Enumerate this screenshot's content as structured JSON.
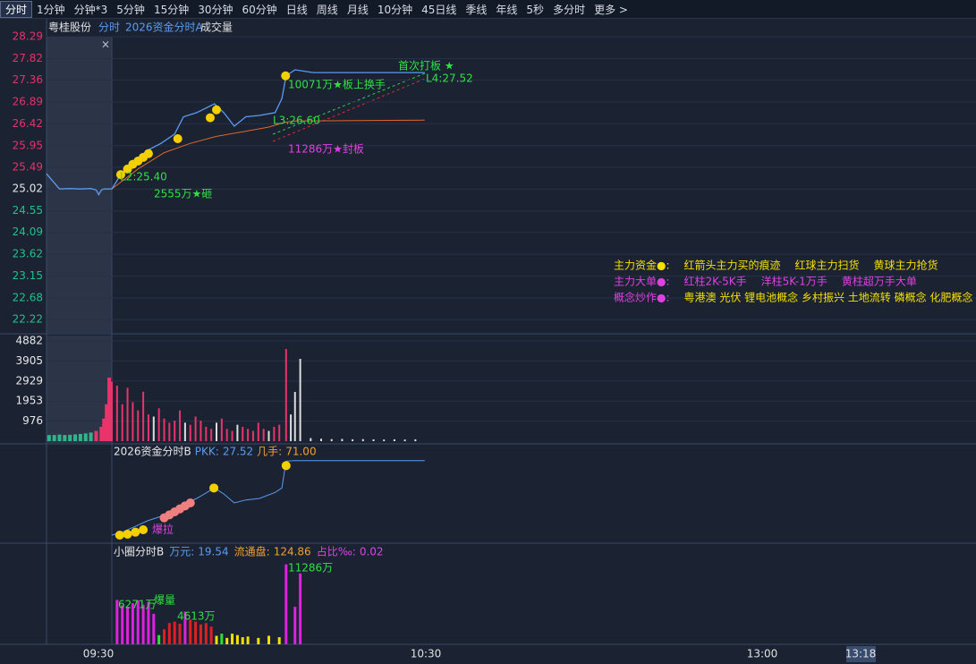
{
  "tabs": [
    "分时",
    "1分钟",
    "分钟*3",
    "5分钟",
    "15分钟",
    "30分钟",
    "60分钟",
    "日线",
    "周线",
    "月线",
    "10分钟",
    "45日线",
    "季线",
    "年线",
    "5秒",
    "多分时",
    "更多 >"
  ],
  "header": {
    "stock": "粤桂股份",
    "mode": "分时",
    "indicator": "2026资金分时A",
    "volume": "成交量",
    "close": "×"
  },
  "price_panel": {
    "ylim": [
      22.22,
      28.29
    ],
    "yticks": [
      28.29,
      27.82,
      27.36,
      26.89,
      26.42,
      25.95,
      25.49,
      25.02,
      24.55,
      24.09,
      23.62,
      23.15,
      22.68,
      22.22
    ],
    "prev_close": 25.02,
    "price": {
      "color": "#5b9bf0",
      "x": [
        -12.5,
        -10,
        -8,
        -6,
        -4,
        -3,
        -2.5,
        -2,
        -1.5,
        0,
        1.7,
        4.3,
        6.8,
        9.4,
        12,
        13.7,
        16.2,
        19.6,
        21.4,
        23.4,
        25.6,
        28.2,
        31.2,
        32.5,
        33.3,
        35,
        38.5,
        59.8
      ],
      "values": [
        25.35,
        25.02,
        25.03,
        25.02,
        25.03,
        25.0,
        24.9,
        25.0,
        25.02,
        25.02,
        25.33,
        25.62,
        25.85,
        26.0,
        26.2,
        26.57,
        26.66,
        26.85,
        26.66,
        26.37,
        26.57,
        26.6,
        26.66,
        26.96,
        27.45,
        27.58,
        27.52,
        27.52
      ]
    },
    "average": {
      "color": "#e0662a",
      "x": [
        0,
        5,
        10,
        15,
        20,
        25,
        30,
        33,
        35,
        59.8
      ],
      "values": [
        25.02,
        25.45,
        25.8,
        26.0,
        26.15,
        26.25,
        26.35,
        26.45,
        26.48,
        26.5
      ]
    },
    "dots": {
      "color": "#f5d000",
      "x": [
        1.7,
        3,
        4,
        5,
        6,
        7,
        12.6,
        18.8,
        20,
        33.2
      ],
      "values": [
        25.33,
        25.45,
        25.55,
        25.62,
        25.7,
        25.78,
        26.1,
        26.55,
        26.72,
        27.45
      ]
    },
    "annotations": [
      "首次打板 ★",
      "L4:27.52",
      "10071万★板上换手",
      "L3:26.60",
      "11286万★封板",
      "L2:25.40",
      "2555万★砸"
    ],
    "legend": [
      [
        "主力资金●:",
        "红箭头主力买的痕迹",
        "红球主力扫货",
        "黄球主力抢货"
      ],
      [
        "主力大单●:",
        "红柱2K-5K手",
        "洋柱5K-1万手",
        "黄柱超万手大单"
      ],
      [
        "概念炒作●:",
        "粤港澳 光伏 锂电池概念 乡村振兴 土地流转 磷概念 化肥概念"
      ]
    ]
  },
  "volume_panel": {
    "ylim": [
      0,
      4882
    ],
    "yticks": [
      4882,
      3905,
      2929,
      1953,
      976
    ],
    "x": [
      -12,
      -11,
      -10,
      -9,
      -8,
      -7,
      -6,
      -5,
      -4,
      -3,
      -2,
      -1.5,
      -1,
      -0.5,
      0,
      1,
      2,
      3,
      4,
      5,
      6,
      7,
      8,
      9,
      10,
      11,
      12,
      13,
      14,
      15,
      16,
      17,
      18,
      19,
      20,
      21,
      22,
      23,
      24,
      25,
      26,
      27,
      28,
      29,
      30,
      31,
      32,
      33.3,
      34.2,
      35,
      36,
      38,
      40,
      42,
      44,
      46,
      48,
      50,
      52,
      54,
      56,
      58
    ],
    "values": [
      300,
      300,
      320,
      300,
      310,
      330,
      350,
      380,
      420,
      500,
      700,
      1100,
      1800,
      3100,
      2900,
      2700,
      1800,
      2600,
      1900,
      1500,
      2400,
      1300,
      1200,
      1600,
      1100,
      900,
      1000,
      1500,
      900,
      800,
      1200,
      1000,
      700,
      600,
      900,
      1100,
      600,
      500,
      800,
      700,
      600,
      500,
      900,
      600,
      500,
      700,
      800,
      4490,
      1300,
      2400,
      4010,
      150,
      120,
      100,
      110,
      90,
      100,
      90,
      80,
      90,
      80,
      90
    ],
    "colors": [
      "#2fb58a",
      "#2fb58a",
      "#2fb58a",
      "#2fb58a",
      "#2fb58a",
      "#2fb58a",
      "#2fb58a",
      "#2fb58a",
      "#2fb58a",
      "#e8346a",
      "#e8346a",
      "#e8346a",
      "#e8346a",
      "#e8346a",
      "#e8346a",
      "#e8346a",
      "#e8346a",
      "#e8346a",
      "#e8346a",
      "#e8346a",
      "#e8346a",
      "#e8346a",
      "#dddddd",
      "#e8346a",
      "#e8346a",
      "#e8346a",
      "#e8346a",
      "#e8346a",
      "#dddddd",
      "#e8346a",
      "#e8346a",
      "#e8346a",
      "#e8346a",
      "#e8346a",
      "#dddddd",
      "#e8346a",
      "#e8346a",
      "#e8346a",
      "#dddddd",
      "#e8346a",
      "#e8346a",
      "#e8346a",
      "#e8346a",
      "#e8346a",
      "#dddddd",
      "#e8346a",
      "#e8346a",
      "#e8346a",
      "#dddddd",
      "#dddddd",
      "#dddddd",
      "#dddddd",
      "#dddddd",
      "#dddddd",
      "#dddddd",
      "#dddddd",
      "#dddddd",
      "#dddddd",
      "#dddddd",
      "#dddddd",
      "#dddddd",
      "#dddddd"
    ]
  },
  "panel2": {
    "title": "2026资金分时B",
    "pkk_label": "PKK:",
    "pkk": "27.52",
    "hands_label": "几手:",
    "hands": "71.00",
    "ylim": [
      24.9,
      27.6
    ],
    "line": {
      "color": "#5b9bf0",
      "x": [
        0,
        1.7,
        4.3,
        6.8,
        9.4,
        12,
        13.7,
        16.2,
        19.6,
        21.4,
        23.4,
        25.6,
        28.2,
        31.2,
        32.5,
        33.3,
        35,
        59.8
      ],
      "values": [
        25.02,
        25.1,
        25.3,
        25.5,
        25.65,
        25.8,
        26.05,
        26.25,
        26.6,
        26.4,
        26.1,
        26.2,
        26.25,
        26.45,
        26.6,
        27.5,
        27.52,
        27.52
      ]
    },
    "dots": {
      "x": [
        1.5,
        3,
        4.5,
        6,
        10,
        11,
        12,
        13,
        14,
        15,
        19.5,
        33.3
      ],
      "values": [
        25.02,
        25.05,
        25.12,
        25.2,
        25.6,
        25.7,
        25.8,
        25.9,
        26.0,
        26.1,
        26.6,
        27.35
      ],
      "colors": [
        "#f5d000",
        "#f5d000",
        "#f5d000",
        "#f5d000",
        "#f08080",
        "#f08080",
        "#f08080",
        "#f08080",
        "#f08080",
        "#f08080",
        "#f5d000",
        "#f5d000"
      ]
    },
    "tag": "爆拉"
  },
  "panel3": {
    "title": "小圈分时B",
    "wan_label": "万元:",
    "wan": "19.54",
    "float_label": "流通盘:",
    "float": "124.86",
    "ratio_label": "占比‰:",
    "ratio": "0.02",
    "ylim": [
      0,
      12000
    ],
    "x": [
      1,
      2,
      3,
      4,
      5,
      6,
      7,
      8,
      9,
      10,
      11,
      12,
      13,
      14,
      15,
      16,
      17,
      18,
      19,
      20,
      21,
      22,
      23,
      24,
      25,
      26,
      28,
      30,
      32,
      33.3,
      35,
      36
    ],
    "values": [
      6271,
      5500,
      5300,
      5800,
      6200,
      5600,
      6000,
      4300,
      1300,
      2100,
      3000,
      3200,
      2900,
      4613,
      3500,
      3200,
      2800,
      3000,
      2500,
      1200,
      1500,
      900,
      1500,
      1300,
      1000,
      1100,
      900,
      1200,
      1000,
      11286,
      5300,
      10000
    ],
    "colors": [
      "#e020e0",
      "#e020e0",
      "#e020e0",
      "#e020e0",
      "#e020e0",
      "#e020e0",
      "#e020e0",
      "#e020e0",
      "#2fe02f",
      "#e02020",
      "#e02020",
      "#e02020",
      "#e02020",
      "#e020e0",
      "#e02020",
      "#e02020",
      "#e02020",
      "#e02020",
      "#e02020",
      "#f5e000",
      "#2fe02f",
      "#f5e000",
      "#f5e000",
      "#f5e000",
      "#f5e000",
      "#f5e000",
      "#f5e000",
      "#f5e000",
      "#f5e000",
      "#e020e0",
      "#e020e0",
      "#e020e0"
    ],
    "annotations": [
      "11286万",
      "6271万",
      "爆量",
      "4613万"
    ]
  },
  "time_axis": [
    "09:30",
    "10:30",
    "13:00",
    "13:18"
  ]
}
